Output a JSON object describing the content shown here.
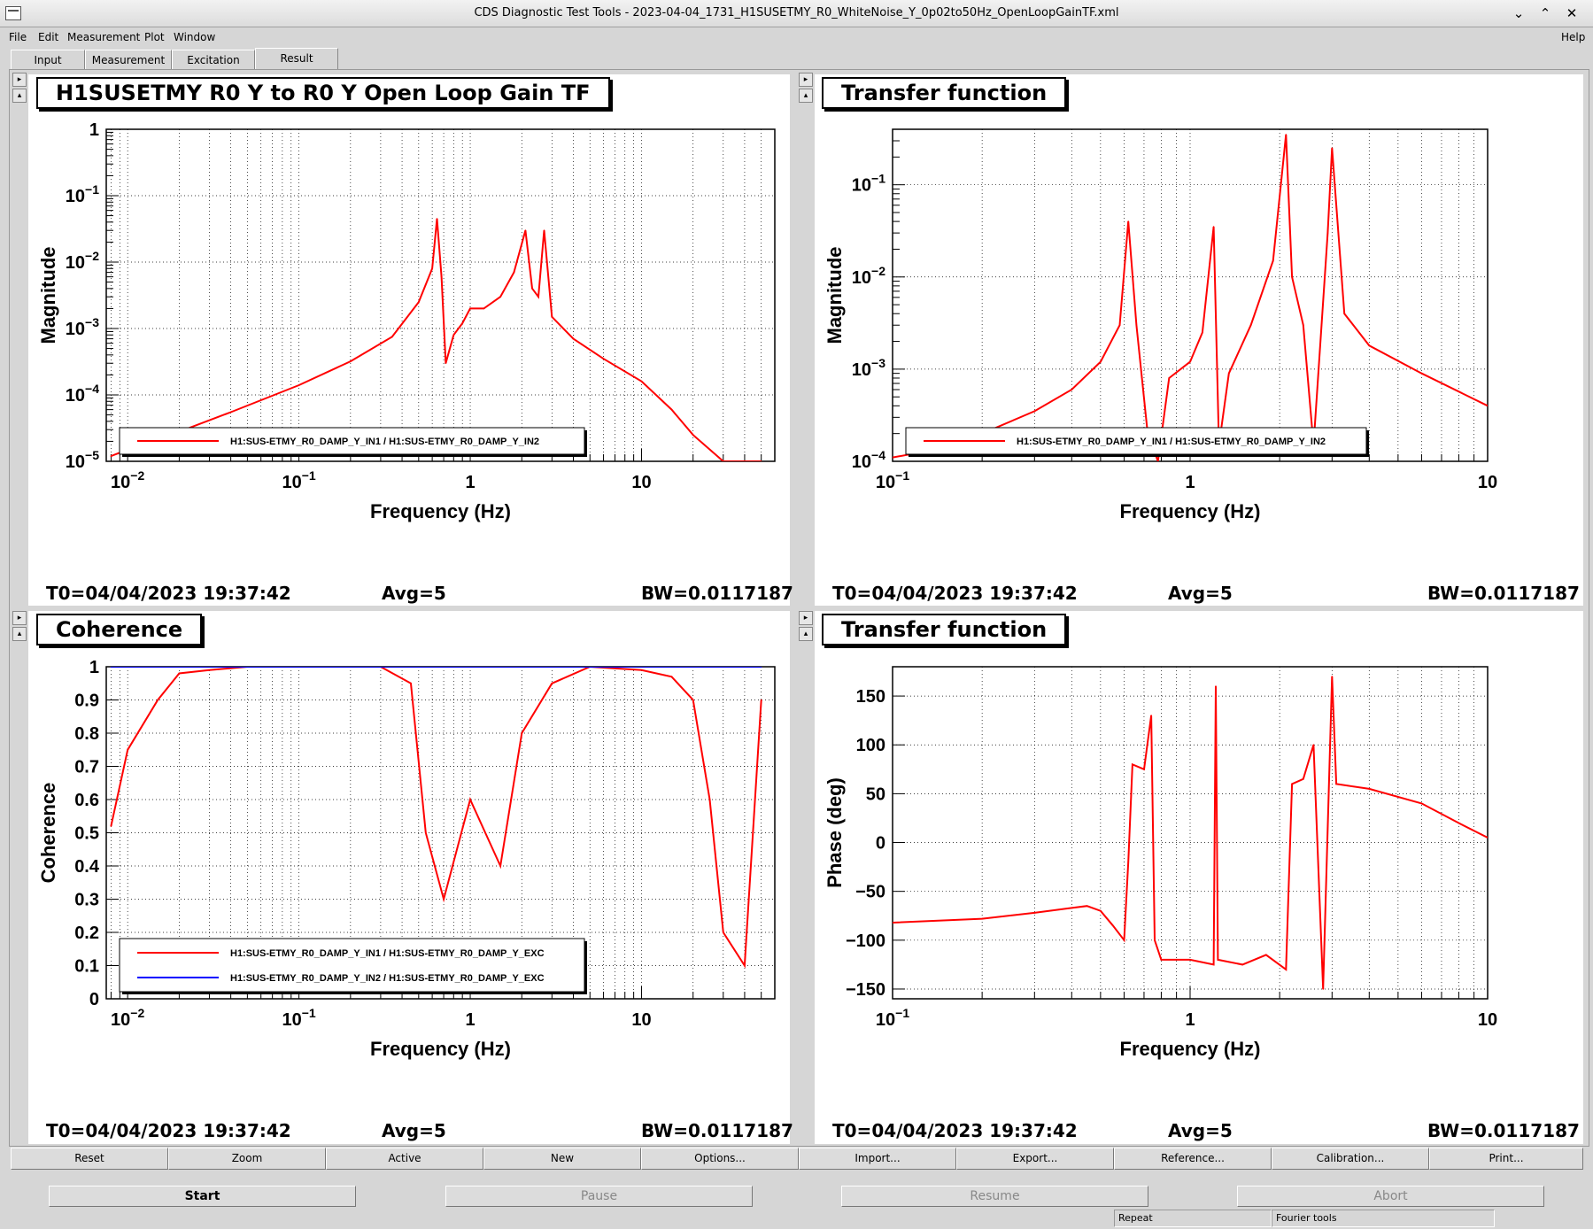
{
  "window": {
    "title": "CDS Diagnostic Test Tools - 2023-04-04_1731_H1SUSETMY_R0_WhiteNoise_Y_0p02to50Hz_OpenLoopGainTF.xml"
  },
  "menu": {
    "items": [
      "File",
      "Edit",
      "Measurement",
      "Plot",
      "Window"
    ],
    "help": "Help"
  },
  "tabs": [
    "Input",
    "Measurement",
    "Excitation",
    "Result"
  ],
  "active_tab": "Result",
  "panels": [
    {
      "title": "H1SUSETMY R0 Y to R0 Y Open Loop Gain TF",
      "ylabel": "Magnitude",
      "xlabel": "Frequency (Hz)",
      "t0": "T0=04/04/2023 19:37:42",
      "avg": "Avg=5",
      "bw": "BW=0.0117187",
      "legend": [
        "H1:SUS-ETMY_R0_DAMP_Y_IN1 / H1:SUS-ETMY_R0_DAMP_Y_IN2"
      ]
    },
    {
      "title": "Transfer function",
      "ylabel": "Magnitude",
      "xlabel": "Frequency (Hz)",
      "t0": "T0=04/04/2023 19:37:42",
      "avg": "Avg=5",
      "bw": "BW=0.0117187",
      "legend": [
        "H1:SUS-ETMY_R0_DAMP_Y_IN1 / H1:SUS-ETMY_R0_DAMP_Y_IN2"
      ]
    },
    {
      "title": "Coherence",
      "ylabel": "Coherence",
      "xlabel": "Frequency (Hz)",
      "t0": "T0=04/04/2023 19:37:42",
      "avg": "Avg=5",
      "bw": "BW=0.0117187",
      "legend": [
        "H1:SUS-ETMY_R0_DAMP_Y_IN1 / H1:SUS-ETMY_R0_DAMP_Y_EXC",
        "H1:SUS-ETMY_R0_DAMP_Y_IN2 / H1:SUS-ETMY_R0_DAMP_Y_EXC"
      ]
    },
    {
      "title": "Transfer function",
      "ylabel": "Phase (deg)",
      "xlabel": "Frequency (Hz)",
      "t0": "T0=04/04/2023 19:37:42",
      "avg": "Avg=5",
      "bw": "BW=0.0117187",
      "legend": []
    }
  ],
  "buttons": [
    "Reset",
    "Zoom",
    "Active",
    "New",
    "Options...",
    "Import...",
    "Export...",
    "Reference...",
    "Calibration...",
    "Print..."
  ],
  "controls": {
    "start": "Start",
    "pause": "Pause",
    "resume": "Resume",
    "abort": "Abort"
  },
  "status": {
    "repeat": "Repeat",
    "fourier": "Fourier tools"
  },
  "colors": {
    "series1": "#ff0000",
    "series2": "#0000ff"
  },
  "chart_data": [
    {
      "type": "line",
      "log_x": true,
      "log_y": true,
      "xlim": [
        0.0075,
        60
      ],
      "ylim": [
        1e-05,
        1
      ],
      "x_ticks": [
        "10^-2",
        "10^-1",
        "1",
        "10"
      ],
      "y_ticks": [
        "10^-5",
        "10^-4",
        "10^-3",
        "10^-2",
        "10^-1",
        "1"
      ],
      "series": [
        {
          "x": [
            0.008,
            0.01,
            0.02,
            0.04,
            0.1,
            0.2,
            0.35,
            0.5,
            0.6,
            0.64,
            0.68,
            0.72,
            0.8,
            0.9,
            1,
            1.2,
            1.5,
            1.8,
            2.1,
            2.3,
            2.5,
            2.7,
            3,
            4,
            6,
            10,
            15,
            20,
            30,
            50
          ],
          "y": [
            1.2e-05,
            1.5e-05,
            2.8e-05,
            5.5e-05,
            0.00014,
            0.00032,
            0.00075,
            0.0025,
            0.008,
            0.045,
            0.006,
            0.0003,
            0.0008,
            0.0012,
            0.002,
            0.002,
            0.003,
            0.007,
            0.03,
            0.004,
            0.003,
            0.03,
            0.0015,
            0.0007,
            0.00035,
            0.00016,
            6e-05,
            2.5e-05,
            1e-05,
            1e-05
          ]
        }
      ],
      "grid": true,
      "legend_position": "bottom-left"
    },
    {
      "type": "line",
      "log_x": true,
      "log_y": true,
      "xlim": [
        0.1,
        10
      ],
      "ylim": [
        0.0001,
        0.4
      ],
      "x_ticks": [
        "10^-1",
        "1",
        "10"
      ],
      "y_ticks": [
        "10^-4",
        "10^-3",
        "10^-2",
        "10^-1"
      ],
      "series": [
        {
          "x": [
            0.1,
            0.15,
            0.2,
            0.3,
            0.4,
            0.5,
            0.58,
            0.62,
            0.66,
            0.72,
            0.78,
            0.85,
            1,
            1.1,
            1.2,
            1.25,
            1.35,
            1.6,
            1.9,
            2.1,
            2.2,
            2.4,
            2.6,
            2.9,
            3,
            3.3,
            4,
            6,
            10
          ],
          "y": [
            0.00011,
            0.00014,
            0.0002,
            0.00035,
            0.0006,
            0.0012,
            0.003,
            0.04,
            0.003,
            0.0002,
            0.0001,
            0.0008,
            0.0012,
            0.0025,
            0.035,
            0.00015,
            0.0009,
            0.003,
            0.015,
            0.35,
            0.01,
            0.003,
            0.00015,
            0.03,
            0.25,
            0.004,
            0.0018,
            0.0009,
            0.0004
          ]
        }
      ],
      "grid": true,
      "legend_position": "bottom-left"
    },
    {
      "type": "line",
      "log_x": true,
      "xlim": [
        0.0075,
        60
      ],
      "ylim": [
        0,
        1
      ],
      "x_ticks": [
        "10^-2",
        "10^-1",
        "1",
        "10"
      ],
      "y_ticks": [
        "0",
        "0.1",
        "0.2",
        "0.3",
        "0.4",
        "0.5",
        "0.6",
        "0.7",
        "0.8",
        "0.9",
        "1"
      ],
      "series": [
        {
          "x": [
            0.008,
            0.01,
            0.015,
            0.02,
            0.03,
            0.05,
            0.1,
            0.3,
            0.45,
            0.55,
            0.7,
            1,
            1.5,
            2,
            3,
            5,
            10,
            15,
            20,
            25,
            30,
            40,
            50
          ],
          "y": [
            0.52,
            0.75,
            0.9,
            0.98,
            0.99,
            1,
            1,
            1,
            0.95,
            0.5,
            0.3,
            0.6,
            0.4,
            0.8,
            0.95,
            1,
            0.99,
            0.97,
            0.9,
            0.6,
            0.2,
            0.1,
            0.9
          ]
        },
        {
          "x": [
            0.008,
            50
          ],
          "y": [
            1,
            1
          ]
        }
      ],
      "grid": true,
      "legend_position": "bottom-left"
    },
    {
      "type": "line",
      "log_x": true,
      "xlim": [
        0.1,
        10
      ],
      "ylim": [
        -160,
        180
      ],
      "x_ticks": [
        "10^-1",
        "1",
        "10"
      ],
      "y_ticks": [
        "-150",
        "-100",
        "-50",
        "0",
        "50",
        "100",
        "150"
      ],
      "series": [
        {
          "x": [
            0.1,
            0.2,
            0.3,
            0.4,
            0.45,
            0.5,
            0.55,
            0.6,
            0.62,
            0.64,
            0.7,
            0.74,
            0.76,
            0.8,
            1,
            1.2,
            1.22,
            1.24,
            1.5,
            1.8,
            2.1,
            2.2,
            2.4,
            2.6,
            2.8,
            3,
            3.1,
            4,
            6,
            8,
            10
          ],
          "y": [
            -82,
            -78,
            -72,
            -67,
            -65,
            -70,
            -85,
            -100,
            -20,
            80,
            75,
            130,
            -100,
            -120,
            -120,
            -125,
            160,
            -120,
            -125,
            -115,
            -130,
            60,
            65,
            100,
            -150,
            170,
            60,
            55,
            40,
            20,
            5
          ]
        }
      ],
      "grid": true
    }
  ]
}
